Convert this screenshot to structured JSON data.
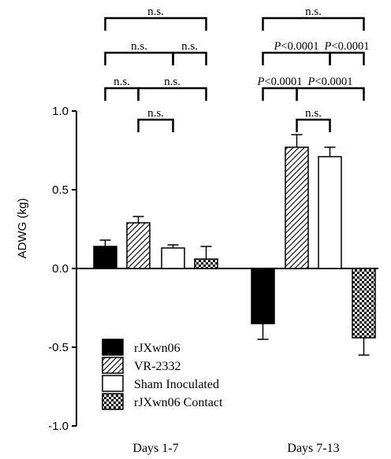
{
  "chart_data": {
    "type": "bar",
    "ylabel": "ADWG (kg)",
    "ylim": [
      -1.0,
      1.0
    ],
    "yticks": [
      "1.0",
      "0.5",
      "0.0",
      "-0.5",
      "-1.0"
    ],
    "ytick_values": [
      1.0,
      0.5,
      0.0,
      -0.5,
      -1.0
    ],
    "categories": [
      "Days 1-7",
      "Days 7-13"
    ],
    "series": [
      {
        "name": "rJXwn06",
        "pattern": "solid",
        "values": [
          0.14,
          -0.35
        ],
        "errors": [
          0.04,
          0.1
        ]
      },
      {
        "name": "VR-2332",
        "pattern": "diagonal",
        "values": [
          0.29,
          0.77
        ],
        "errors": [
          0.04,
          0.08
        ]
      },
      {
        "name": "Sham Inoculated",
        "pattern": "open",
        "values": [
          0.13,
          0.71
        ],
        "errors": [
          0.02,
          0.06
        ]
      },
      {
        "name": "rJXwn06 Contact",
        "pattern": "checker",
        "values": [
          0.06,
          -0.44
        ],
        "errors": [
          0.08,
          0.11
        ]
      }
    ],
    "legend_placement": "bottom-left",
    "grid": false,
    "significance": [
      {
        "group": 0,
        "from": 0,
        "to": 3,
        "level": 1,
        "label": "n.s."
      },
      {
        "group": 0,
        "from": 0,
        "to": 2,
        "level": 2,
        "label": "n.s."
      },
      {
        "group": 0,
        "from": 2,
        "to": 3,
        "level": 2,
        "label": "n.s."
      },
      {
        "group": 0,
        "from": 0,
        "to": 1,
        "level": 3,
        "label": "n.s."
      },
      {
        "group": 0,
        "from": 1,
        "to": 3,
        "level": 3,
        "label": "n.s."
      },
      {
        "group": 0,
        "from": 1,
        "to": 2,
        "level": 4,
        "label": "n.s."
      },
      {
        "group": 1,
        "from": 0,
        "to": 3,
        "level": 1,
        "label": "n.s."
      },
      {
        "group": 1,
        "from": 0,
        "to": 2,
        "level": 2,
        "label": "P<0.0001"
      },
      {
        "group": 1,
        "from": 2,
        "to": 3,
        "level": 2,
        "label": "P<0.0001"
      },
      {
        "group": 1,
        "from": 0,
        "to": 1,
        "level": 3,
        "label": "P<0.0001"
      },
      {
        "group": 1,
        "from": 1,
        "to": 3,
        "level": 3,
        "label": "P<0.0001"
      },
      {
        "group": 1,
        "from": 1,
        "to": 2,
        "level": 4,
        "label": "n.s."
      }
    ]
  }
}
